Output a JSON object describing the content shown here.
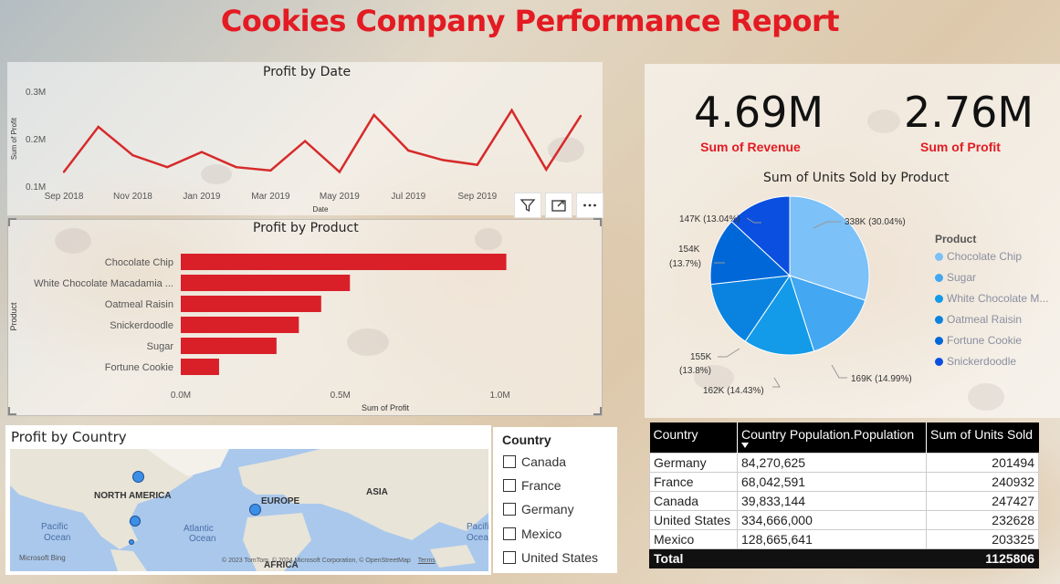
{
  "report": {
    "title": "Cookies Company Performance Report"
  },
  "toolbar": {
    "filter_icon": "filter-icon",
    "focus_icon": "focus-mode-icon",
    "more_icon": "more-options-icon"
  },
  "profit_by_date": {
    "title": "Profit by Date",
    "xlabel": "Date",
    "ylabel": "Sum of Profit",
    "y_ticks": [
      "0.3M",
      "0.2M",
      "0.1M"
    ],
    "x_ticks": [
      "Sep 2018",
      "Nov 2018",
      "Jan 2019",
      "Mar 2019",
      "May 2019",
      "Jul 2019",
      "Sep 2019"
    ]
  },
  "profit_by_product": {
    "title": "Profit by Product",
    "xlabel": "Sum of Profit",
    "ylabel": "Product",
    "x_ticks": [
      "0.0M",
      "0.5M",
      "1.0M"
    ]
  },
  "kpis": {
    "revenue": {
      "value": "4.69M",
      "label": "Sum of Revenue"
    },
    "profit": {
      "value": "2.76M",
      "label": "Sum of Profit"
    }
  },
  "units_by_product": {
    "title": "Sum of Units Sold by Product",
    "legend_title": "Product",
    "legend": [
      "Chocolate Chip",
      "Sugar",
      "White Chocolate M...",
      "Oatmeal Raisin",
      "Fortune Cookie",
      "Snickerdoodle"
    ],
    "slice_labels": [
      "338K (30.04%)",
      "169K (14.99%)",
      "162K (14.43%)",
      "155K",
      "(13.8%)",
      "154K",
      "(13.7%)",
      "147K (13.04%)"
    ]
  },
  "map": {
    "title": "Profit by Country",
    "labels": [
      "NORTH AMERICA",
      "EUROPE",
      "ASIA",
      "Pacific",
      "Ocean",
      "Atlantic",
      "Ocean",
      "Pacific",
      "Ocean",
      "AFRICA"
    ],
    "bing": "Microsoft Bing",
    "copyright": "© 2023 TomTom, © 2024 Microsoft Corporation, © OpenStreetMap",
    "terms": "Terms"
  },
  "slicer": {
    "title": "Country",
    "options": [
      "Canada",
      "France",
      "Germany",
      "Mexico",
      "United States"
    ]
  },
  "table": {
    "headers": [
      "Country",
      "Country Population.Population",
      "Sum of Units Sold"
    ],
    "rows": [
      [
        "Germany",
        "84,270,625",
        "201494"
      ],
      [
        "France",
        "68,042,591",
        "240932"
      ],
      [
        "Canada",
        "39,833,144",
        "247427"
      ],
      [
        "United States",
        "334,666,000",
        "232628"
      ],
      [
        "Mexico",
        "128,665,641",
        "203325"
      ]
    ],
    "total_label": "Total",
    "total_value": "1125806"
  },
  "colors": {
    "accent": "#e31b23",
    "line": "#d62a2a",
    "bar": "#d92029",
    "pie": [
      "#7cc1f7",
      "#43a7f2",
      "#139ae8",
      "#0a83e0",
      "#0067d9",
      "#0a4fe0"
    ]
  },
  "chart_data": [
    {
      "type": "line",
      "title": "Profit by Date",
      "xlabel": "Date",
      "ylabel": "Sum of Profit",
      "x": [
        "2018-09",
        "2018-10",
        "2018-11",
        "2018-12",
        "2019-01",
        "2019-02",
        "2019-03",
        "2019-04",
        "2019-05",
        "2019-06",
        "2019-07",
        "2019-08",
        "2019-09",
        "2019-10",
        "2019-11",
        "2019-12"
      ],
      "series": [
        {
          "values": [
            0.13,
            0.225,
            0.165,
            0.14,
            0.172,
            0.14,
            0.133,
            0.195,
            0.13,
            0.25,
            0.175,
            0.155,
            0.145,
            0.26,
            0.135,
            0.248
          ]
        }
      ],
      "ylim": [
        0.1,
        0.3
      ]
    },
    {
      "type": "bar",
      "orientation": "horizontal",
      "title": "Profit by Product",
      "xlabel": "Sum of Profit",
      "ylabel": "Product",
      "categories": [
        "Chocolate Chip",
        "White Chocolate Macadamia ...",
        "Oatmeal Raisin",
        "Snickerdoodle",
        "Sugar",
        "Fortune Cookie"
      ],
      "values": [
        1.02,
        0.53,
        0.44,
        0.37,
        0.3,
        0.12
      ],
      "xlim": [
        0,
        1.15
      ]
    },
    {
      "type": "pie",
      "title": "Sum of Units Sold by Product",
      "categories": [
        "Chocolate Chip",
        "Sugar",
        "White Chocolate M...",
        "Oatmeal Raisin",
        "Fortune Cookie",
        "Snickerdoodle"
      ],
      "values": [
        338,
        169,
        162,
        155,
        154,
        147
      ],
      "percent": [
        30.04,
        14.99,
        14.43,
        13.8,
        13.7,
        13.04
      ]
    }
  ]
}
